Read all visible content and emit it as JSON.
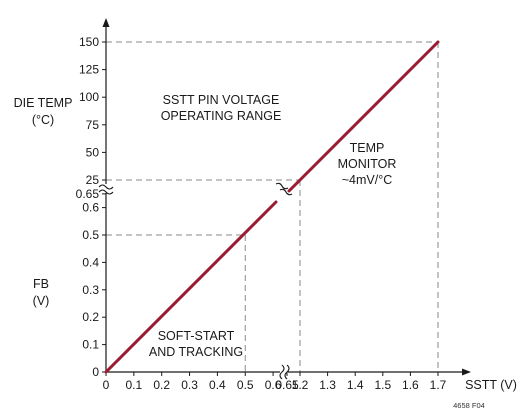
{
  "chart_data": {
    "type": "line",
    "x_axis": {
      "label": "SSTT (V)",
      "ticks": [
        "0",
        "0.1",
        "0.2",
        "0.3",
        "0.4",
        "0.5",
        "0.6",
        "0.65",
        "1.2",
        "1.3",
        "1.4",
        "1.5",
        "1.6",
        "1.7"
      ],
      "break_between": [
        "0.65",
        "1.2"
      ]
    },
    "y_axis_lower": {
      "label_line1": "FB",
      "label_line2": "(V)",
      "ticks": [
        "0",
        "0.1",
        "0.2",
        "0.3",
        "0.4",
        "0.5",
        "0.6",
        "0.65"
      ]
    },
    "y_axis_upper": {
      "label_line1": "DIE TEMP",
      "label_line2": "(°C)",
      "ticks": [
        "25",
        "50",
        "75",
        "100",
        "125",
        "150"
      ]
    },
    "series": [
      {
        "points_lower": [
          {
            "x": 0,
            "y": 0
          },
          {
            "x": 0.65,
            "y": 0.65
          }
        ],
        "points_upper": [
          {
            "x": 1.2,
            "y": 25
          },
          {
            "x": 1.7,
            "y": 150
          }
        ]
      }
    ],
    "reference_points": [
      {
        "x": 0.5,
        "y": 0.5,
        "axis": "lower"
      },
      {
        "x": 1.2,
        "y": 25,
        "axis": "upper"
      },
      {
        "x": 1.7,
        "y": 150,
        "axis": "upper"
      }
    ],
    "annotations": {
      "sstt_range_line1": "SSTT PIN VOLTAGE",
      "sstt_range_line2": "OPERATING RANGE",
      "temp_line1": "TEMP",
      "temp_line2": "MONITOR",
      "temp_line3": "~4mV/°C",
      "softstart_line1": "SOFT-START",
      "softstart_line2": "AND TRACKING"
    },
    "figure_id": "4658 F04",
    "colors": {
      "curve": "#9b1b30",
      "axis": "#1a1a1a",
      "dashed": "#8a8a8a"
    }
  }
}
